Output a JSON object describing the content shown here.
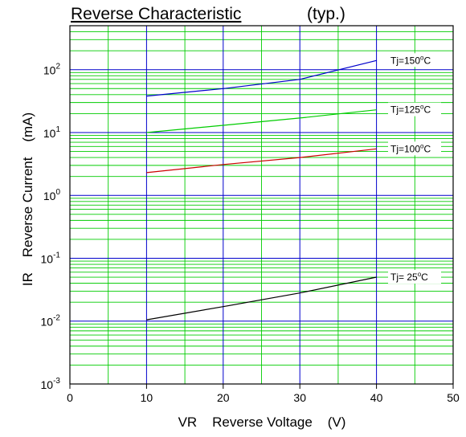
{
  "chart_data": {
    "type": "line",
    "title": "Reverse Characteristic",
    "subtitle": "(typ.)",
    "xlabel": "VR    Reverse Voltage    (V)",
    "ylabel": "IR    Reverse Current    (mA)",
    "xlim": [
      0,
      50
    ],
    "ylim": [
      0.001,
      500
    ],
    "yscale": "log",
    "x_ticks": [
      "0",
      "10",
      "20",
      "30",
      "40",
      "50"
    ],
    "y_ticks": [
      {
        "base": "10",
        "exp": "-3",
        "value": 0.001
      },
      {
        "base": "10",
        "exp": "-2",
        "value": 0.01
      },
      {
        "base": "10",
        "exp": "-1",
        "value": 0.1
      },
      {
        "base": "10",
        "exp": "0",
        "value": 1
      },
      {
        "base": "10",
        "exp": "1",
        "value": 10
      },
      {
        "base": "10",
        "exp": "2",
        "value": 100
      }
    ],
    "grid": true,
    "series": [
      {
        "name": "Tj=150°C",
        "label_main": "Tj=150",
        "label_deg": "o",
        "label_unit": "C",
        "color": "#0000cc",
        "points": [
          [
            10,
            38
          ],
          [
            20,
            50
          ],
          [
            30,
            70
          ],
          [
            40,
            140
          ]
        ]
      },
      {
        "name": "Tj=125°C",
        "label_main": "Tj=125",
        "label_deg": "o",
        "label_unit": "C",
        "color": "#00cc00",
        "points": [
          [
            10,
            10
          ],
          [
            20,
            13
          ],
          [
            30,
            17
          ],
          [
            40,
            23
          ]
        ]
      },
      {
        "name": "Tj=100°C",
        "label_main": "Tj=100",
        "label_deg": "o",
        "label_unit": "C",
        "color": "#cc0000",
        "points": [
          [
            10,
            2.3
          ],
          [
            20,
            3.1
          ],
          [
            30,
            4.0
          ],
          [
            40,
            5.5
          ]
        ]
      },
      {
        "name": "Tj= 25°C",
        "label_main": "Tj= 25",
        "label_deg": "o",
        "label_unit": "C",
        "color": "#000000",
        "points": [
          [
            10,
            0.0105
          ],
          [
            20,
            0.017
          ],
          [
            30,
            0.028
          ],
          [
            40,
            0.05
          ]
        ]
      }
    ],
    "colors": {
      "major_grid": "#0000cc",
      "minor_grid": "#00cc00",
      "frame": "#000000"
    }
  }
}
